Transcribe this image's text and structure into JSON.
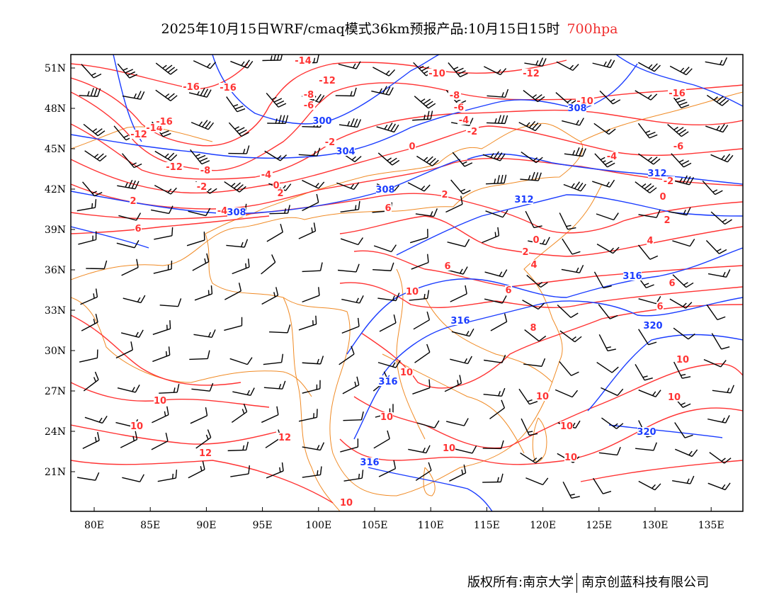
{
  "title": {
    "main": "2025年10月15日WRF/cmaq模式36km预报产品:10月15日15时",
    "level": "700hpa"
  },
  "footer": {
    "copyright": "版权所有:南京大学",
    "company": "南京创蓝科技有限公司"
  },
  "colors": {
    "temperature": "#ff3333",
    "height": "#1a3cff",
    "border": "#f08a24",
    "wind": "#000000",
    "level": "#f03030"
  },
  "axes": {
    "lon_ticks": [
      "80E",
      "85E",
      "90E",
      "95E",
      "100E",
      "105E",
      "110E",
      "115E",
      "120E",
      "125E",
      "130E",
      "135E"
    ],
    "lat_ticks": [
      "51N",
      "48N",
      "45N",
      "42N",
      "39N",
      "36N",
      "33N",
      "30N",
      "27N",
      "24N",
      "21N"
    ]
  },
  "temperature_labels": [
    "-14",
    "-12",
    "-10",
    "-12",
    "-16",
    "-16",
    "-8",
    "-6",
    "-8",
    "-6",
    "-10",
    "-16",
    "-14",
    "-16",
    "-12",
    "-4",
    "-2",
    "-2",
    "0",
    "-6",
    "-12",
    "-8",
    "-4",
    "-4",
    "-2",
    "-2",
    "0",
    "2",
    "2",
    "0",
    "2",
    "-4",
    "6",
    "2",
    "6",
    "4",
    "0",
    "2",
    "4",
    "6",
    "6",
    "10",
    "6",
    "6",
    "8",
    "10",
    "10",
    "10",
    "10",
    "10",
    "10",
    "10",
    "10",
    "12",
    "12",
    "10",
    "10",
    "10"
  ],
  "height_labels": [
    "300",
    "304",
    "308",
    "308",
    "308",
    "312",
    "312",
    "316",
    "316",
    "320",
    "316",
    "320",
    "316"
  ]
}
